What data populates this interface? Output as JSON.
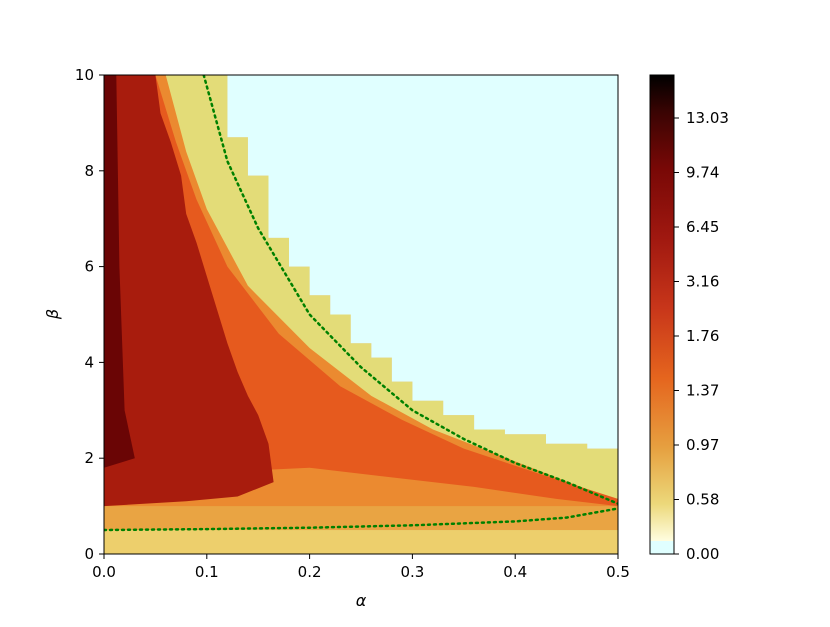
{
  "chart_data": {
    "type": "heatmap",
    "subtype": "filled-contour",
    "title": "",
    "xlabel": "α",
    "ylabel": "β",
    "xlim": [
      0.0,
      0.5
    ],
    "ylim": [
      0,
      10
    ],
    "x_ticks": [
      "0.0",
      "0.1",
      "0.2",
      "0.3",
      "0.4",
      "0.5"
    ],
    "y_ticks": [
      "0",
      "2",
      "4",
      "6",
      "8",
      "10"
    ],
    "colorbar": {
      "tick_labels": [
        "0.00",
        "0.58",
        "0.97",
        "1.37",
        "1.76",
        "3.16",
        "6.45",
        "9.74",
        "13.03"
      ],
      "min": 0.0,
      "max": 15.0,
      "colormap": "afmhot_r",
      "zero_color": "#e0ffff"
    },
    "regions": [
      {
        "name": "zero region (value 0.00)",
        "color": "#e0ffff"
      },
      {
        "name": "band above critical curve",
        "color": "#e3dc78"
      },
      {
        "name": "ridge along critical curve",
        "color": "#e65a1e"
      },
      {
        "name": "high region near α=0",
        "color": "#a81c0d"
      }
    ],
    "critical_curves": [
      {
        "name": "upper branch",
        "style": "dotted",
        "color": "#008000",
        "x": [
          0.097,
          0.12,
          0.15,
          0.2,
          0.25,
          0.3,
          0.35,
          0.4,
          0.45,
          0.5
        ],
        "y": [
          10.0,
          8.2,
          6.8,
          5.0,
          3.9,
          3.0,
          2.4,
          1.9,
          1.5,
          1.05
        ]
      },
      {
        "name": "lower branch",
        "style": "dotted",
        "color": "#008000",
        "x": [
          0.0,
          0.1,
          0.2,
          0.3,
          0.4,
          0.45,
          0.5
        ],
        "y": [
          0.5,
          0.52,
          0.55,
          0.6,
          0.68,
          0.76,
          0.95
        ]
      }
    ],
    "zero_boundary_steps": {
      "x": [
        0.1,
        0.12,
        0.14,
        0.16,
        0.18,
        0.2,
        0.22,
        0.24,
        0.26,
        0.28,
        0.3,
        0.33,
        0.36,
        0.39,
        0.43,
        0.47,
        0.5
      ],
      "y": [
        10.0,
        8.7,
        7.9,
        6.6,
        6.0,
        5.4,
        5.0,
        4.4,
        4.1,
        3.6,
        3.2,
        2.9,
        2.6,
        2.5,
        2.3,
        2.2,
        2.0
      ]
    },
    "grid": false,
    "legend": "none"
  }
}
